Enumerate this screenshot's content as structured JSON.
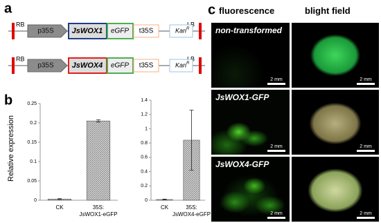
{
  "panel_a": {
    "label": "a",
    "constructs": [
      {
        "rb": "RB",
        "promoter": "p35S",
        "gene": "JsWOX1",
        "gene_color": "#1f3c88",
        "tag": "eGFP",
        "terminator": "t35S",
        "marker": "Kan",
        "marker_sup": "R",
        "lb": "LB"
      },
      {
        "rb": "RB",
        "promoter": "p35S",
        "gene": "JsWOX4",
        "gene_color": "#e02020",
        "tag": "eGFP",
        "terminator": "t35S",
        "marker": "Kan",
        "marker_sup": "R",
        "lb": "LB"
      }
    ]
  },
  "panel_b": {
    "label": "b",
    "y_label": "Relative expression"
  },
  "chart_data": [
    {
      "type": "bar",
      "categories": [
        "CK",
        "35S:\nJsWOX1-eGFP"
      ],
      "values": [
        0.003,
        0.205
      ],
      "errors": [
        0.001,
        0.003
      ],
      "ylim": [
        0,
        0.25
      ],
      "yticks": [
        0,
        0.05,
        0.1,
        0.15,
        0.2,
        0.25
      ]
    },
    {
      "type": "bar",
      "categories": [
        "CK",
        "35S:\nJsWOX4-eGFP"
      ],
      "values": [
        0.01,
        0.84
      ],
      "errors": [
        0.005,
        0.42
      ],
      "ylim": [
        0,
        1.4
      ],
      "yticks": [
        0,
        0.2,
        0.4,
        0.6,
        0.8,
        1,
        1.2,
        1.4
      ]
    }
  ],
  "panel_c": {
    "label": "c",
    "columns": [
      "fluorescence",
      "blight field"
    ],
    "rows": [
      {
        "label": "non-transformed",
        "scale_bars": [
          "2 mm",
          "2 mm"
        ]
      },
      {
        "label": "JsWOX1-GFP",
        "scale_bars": [
          "2 mm",
          "2 mm"
        ]
      },
      {
        "label": "JsWOX4-GFP",
        "scale_bars": [
          "2 mm",
          "2 mm"
        ]
      }
    ]
  }
}
